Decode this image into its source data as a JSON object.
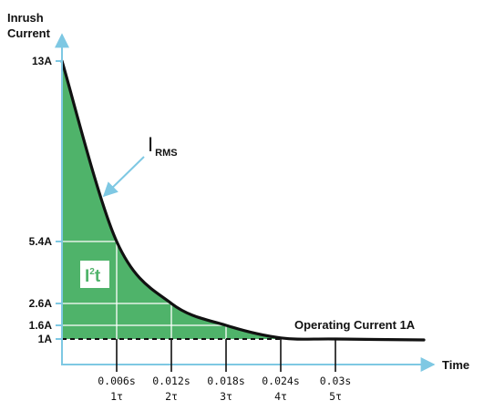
{
  "chart_data": {
    "type": "area",
    "ylabel": [
      "Inrush",
      "Current"
    ],
    "xlabel": "Time",
    "yticks": [
      {
        "value": 13,
        "label": "13A"
      },
      {
        "value": 5.4,
        "label": "5.4A"
      },
      {
        "value": 2.6,
        "label": "2.6A"
      },
      {
        "value": 1.6,
        "label": "1.6A"
      },
      {
        "value": 1,
        "label": "1A"
      }
    ],
    "xticks": [
      {
        "value": 0.006,
        "label": "0.006s",
        "tau": "1τ"
      },
      {
        "value": 0.012,
        "label": "0.012s",
        "tau": "2τ"
      },
      {
        "value": 0.018,
        "label": "0.018s",
        "tau": "3τ"
      },
      {
        "value": 0.024,
        "label": "0.024s",
        "tau": "4τ"
      },
      {
        "value": 0.03,
        "label": "0.03s",
        "tau": "5τ"
      }
    ],
    "xlim": [
      0,
      0.0397
    ],
    "ylim": [
      1,
      13
    ],
    "series": [
      {
        "x": [
          0,
          0.006,
          0.012,
          0.018,
          0.024,
          0.03,
          0.0397
        ],
        "y": [
          13,
          5.4,
          2.6,
          1.6,
          1.05,
          1.0,
          0.95
        ]
      }
    ],
    "area_color": "#4fb36a",
    "curve_color": "#111111",
    "axis_color": "#7ec8e3",
    "annotations": {
      "irms_main": "I",
      "irms_sub": "RMS",
      "i2t_main": "I",
      "i2t_sup": "2",
      "i2t_rest": "t",
      "operating": "Operating Current 1A"
    }
  }
}
